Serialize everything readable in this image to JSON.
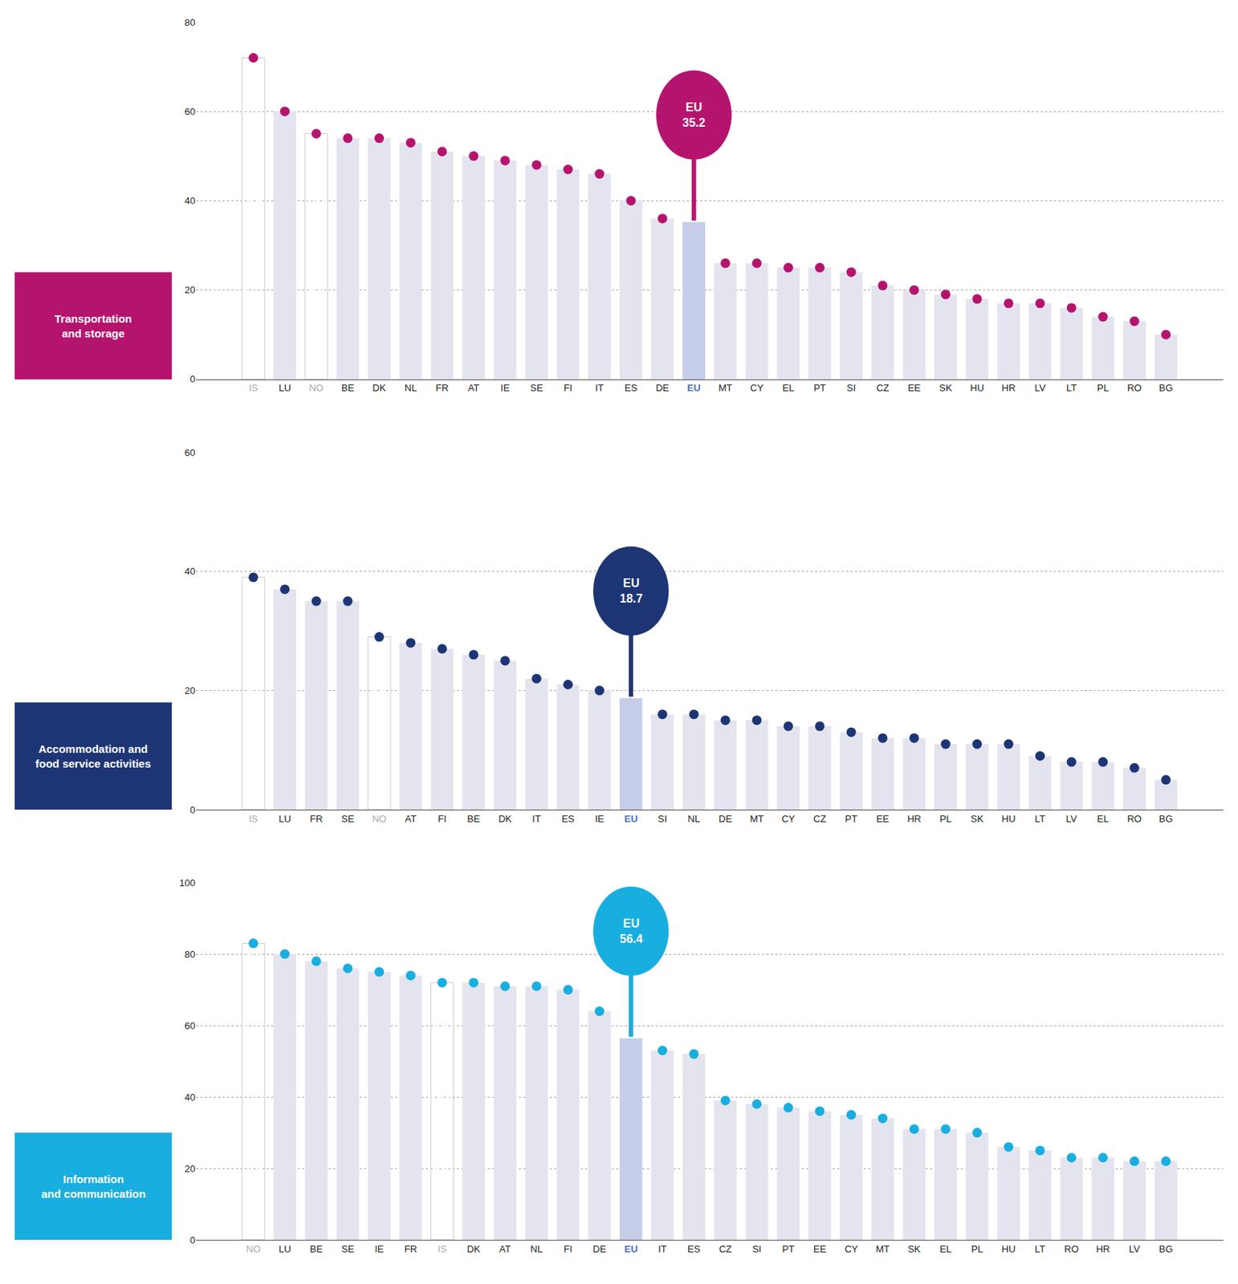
{
  "chart_data": [
    {
      "type": "bar",
      "title": "Transportation\nand storage",
      "categories": [
        "IS",
        "LU",
        "NO",
        "BE",
        "DK",
        "NL",
        "FR",
        "AT",
        "IE",
        "SE",
        "FI",
        "IT",
        "ES",
        "DE",
        "EU",
        "MT",
        "CY",
        "EL",
        "PT",
        "SI",
        "CZ",
        "EE",
        "SK",
        "HU",
        "HR",
        "LV",
        "LT",
        "PL",
        "RO",
        "BG"
      ],
      "values": [
        72,
        60,
        55,
        54,
        54,
        53,
        51,
        50,
        49,
        48,
        47,
        46,
        40,
        36,
        35.2,
        26,
        26,
        25,
        25,
        24,
        21,
        20,
        19,
        18,
        17,
        17,
        16,
        14,
        13,
        10
      ],
      "color": "#b5146e",
      "colors": [
        "#ffffff",
        "#e4e4ef",
        "#ffffff",
        "#e4e4ef",
        "#e4e4ef",
        "#e4e4ef",
        "#e4e4ef",
        "#e4e4ef",
        "#e4e4ef",
        "#e4e4ef",
        "#e4e4ef",
        "#e4e4ef",
        "#e4e4ef",
        "#e4e4ef",
        "#c5cde8",
        "#e4e4ef",
        "#e4e4ef",
        "#e4e4ef",
        "#e4e4ef",
        "#e4e4ef",
        "#e4e4ef",
        "#e4e4ef",
        "#e4e4ef",
        "#e4e4ef",
        "#e4e4ef",
        "#e4e4ef",
        "#e4e4ef",
        "#e4e4ef",
        "#e4e4ef",
        "#e4e4ef"
      ],
      "marker": "circle",
      "ylim": [
        0,
        80
      ],
      "yticks": [
        0,
        20,
        40,
        60,
        80
      ],
      "grid": true,
      "annotations": [
        {
          "category": "EU",
          "text": "EU\n35.2"
        }
      ]
    },
    {
      "type": "bar",
      "title": "Accommodation and\nfood service activities",
      "categories": [
        "IS",
        "LU",
        "FR",
        "SE",
        "NO",
        "AT",
        "FI",
        "BE",
        "DK",
        "IT",
        "ES",
        "IE",
        "EU",
        "SI",
        "NL",
        "DE",
        "MT",
        "CY",
        "CZ",
        "PT",
        "EE",
        "HR",
        "PL",
        "SK",
        "HU",
        "LT",
        "LV",
        "EL",
        "RO",
        "BG"
      ],
      "values": [
        39,
        37,
        35,
        35,
        29,
        28,
        27,
        26,
        25,
        22,
        21,
        20,
        18.7,
        16,
        16,
        15,
        15,
        14,
        14,
        13,
        12,
        12,
        11,
        11,
        11,
        9,
        8,
        8,
        7,
        5
      ],
      "color": "#1e3575",
      "colors": [
        "#ffffff",
        "#e4e4ef",
        "#e4e4ef",
        "#e4e4ef",
        "#ffffff",
        "#e4e4ef",
        "#e4e4ef",
        "#e4e4ef",
        "#e4e4ef",
        "#e4e4ef",
        "#e4e4ef",
        "#e4e4ef",
        "#c5cde8",
        "#e4e4ef",
        "#e4e4ef",
        "#e4e4ef",
        "#e4e4ef",
        "#e4e4ef",
        "#e4e4ef",
        "#e4e4ef",
        "#e4e4ef",
        "#e4e4ef",
        "#e4e4ef",
        "#e4e4ef",
        "#e4e4ef",
        "#e4e4ef",
        "#e4e4ef",
        "#e4e4ef",
        "#e4e4ef",
        "#e4e4ef"
      ],
      "marker": "circle",
      "ylim": [
        0,
        60
      ],
      "yticks": [
        0,
        20,
        40,
        60
      ],
      "grid": true,
      "annotations": [
        {
          "category": "EU",
          "text": "EU\n18.7"
        }
      ]
    },
    {
      "type": "bar",
      "title": "Information\nand communication",
      "categories": [
        "NO",
        "LU",
        "BE",
        "SE",
        "IE",
        "FR",
        "IS",
        "DK",
        "AT",
        "NL",
        "FI",
        "DE",
        "EU",
        "IT",
        "ES",
        "CZ",
        "SI",
        "PT",
        "EE",
        "CY",
        "MT",
        "SK",
        "EL",
        "PL",
        "HU",
        "LT",
        "RO",
        "HR",
        "LV",
        "BG"
      ],
      "values": [
        83,
        80,
        78,
        76,
        75,
        74,
        72,
        72,
        71,
        71,
        70,
        64,
        56.4,
        53,
        52,
        39,
        38,
        37,
        36,
        35,
        34,
        31,
        31,
        30,
        26,
        25,
        23,
        23,
        22,
        22
      ],
      "color": "#19aee0",
      "colors": [
        "#ffffff",
        "#e4e4ef",
        "#e4e4ef",
        "#e4e4ef",
        "#e4e4ef",
        "#e4e4ef",
        "#ffffff",
        "#e4e4ef",
        "#e4e4ef",
        "#e4e4ef",
        "#e4e4ef",
        "#e4e4ef",
        "#c5cde8",
        "#e4e4ef",
        "#e4e4ef",
        "#e4e4ef",
        "#e4e4ef",
        "#e4e4ef",
        "#e4e4ef",
        "#e4e4ef",
        "#e4e4ef",
        "#e4e4ef",
        "#e4e4ef",
        "#e4e4ef",
        "#e4e4ef",
        "#e4e4ef",
        "#e4e4ef",
        "#e4e4ef",
        "#e4e4ef",
        "#e4e4ef"
      ],
      "marker": "circle",
      "ylim": [
        0,
        100
      ],
      "yticks": [
        0,
        20,
        40,
        60,
        80,
        100
      ],
      "grid": true,
      "annotations": [
        {
          "category": "EU",
          "text": "EU\n56.4"
        }
      ]
    }
  ]
}
